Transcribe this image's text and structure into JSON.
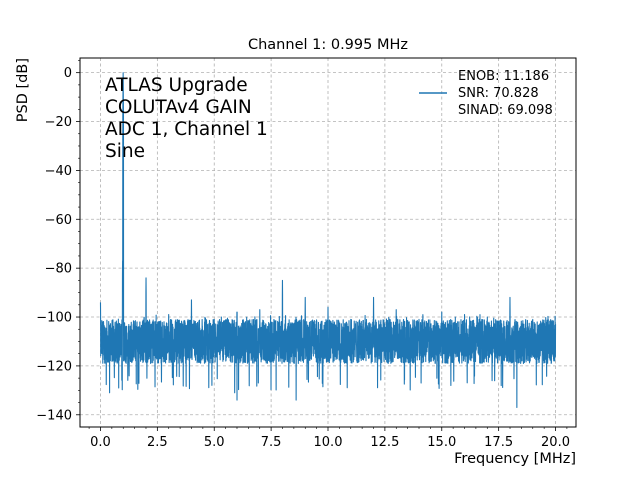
{
  "chart_data": {
    "type": "line",
    "title": "Channel 1: 0.995 MHz",
    "xlabel": "Frequency [MHz]",
    "ylabel": "PSD [dB]",
    "xlim": [
      -0.9,
      20.9
    ],
    "ylim": [
      -145,
      6
    ],
    "x_ticks": [
      0.0,
      2.5,
      5.0,
      7.5,
      10.0,
      12.5,
      15.0,
      17.5,
      20.0
    ],
    "x_tick_labels": [
      "0.0",
      "2.5",
      "5.0",
      "7.5",
      "10.0",
      "12.5",
      "15.0",
      "17.5",
      "20.0"
    ],
    "y_ticks": [
      0,
      -20,
      -40,
      -60,
      -80,
      -100,
      -120,
      -140
    ],
    "y_tick_labels": [
      "0",
      "−20",
      "−40",
      "−60",
      "−80",
      "−100",
      "−120",
      "−140"
    ],
    "grid": true,
    "legend_position": "top-right",
    "legend_entries": [
      "ENOB: 11.186\n SNR: 70.828\n SINAD: 69.098"
    ],
    "annotation": [
      "ATLAS Upgrade",
      "COLUTAv4 GAIN",
      "ADC 1, Channel 1",
      "Sine"
    ],
    "series": [
      {
        "name": "ENOB: 11.186 SNR: 70.828 SINAD: 69.098",
        "color": "#1f77b4",
        "noise_floor": {
          "x_range": [
            0.0,
            20.0
          ],
          "center": -110,
          "min": -124,
          "max": -102
        },
        "peaks": [
          {
            "x": 0.0,
            "y": -94
          },
          {
            "x": 0.995,
            "y": 0
          },
          {
            "x": 0.97,
            "y": -77
          },
          {
            "x": 2.0,
            "y": -84
          },
          {
            "x": 3.0,
            "y": -99
          },
          {
            "x": 4.0,
            "y": -93
          },
          {
            "x": 5.0,
            "y": -101
          },
          {
            "x": 6.0,
            "y": -92
          },
          {
            "x": 7.0,
            "y": -97
          },
          {
            "x": 8.0,
            "y": -85
          },
          {
            "x": 9.0,
            "y": -92
          },
          {
            "x": 10.0,
            "y": -96
          },
          {
            "x": 11.0,
            "y": -101
          },
          {
            "x": 12.0,
            "y": -92
          },
          {
            "x": 13.0,
            "y": -97
          },
          {
            "x": 14.0,
            "y": -101
          },
          {
            "x": 15.0,
            "y": -98
          },
          {
            "x": 16.0,
            "y": -99
          },
          {
            "x": 17.0,
            "y": -100
          },
          {
            "x": 18.0,
            "y": -92
          },
          {
            "x": 19.0,
            "y": -101
          }
        ],
        "dips": [
          {
            "x": 0.4,
            "y": -131
          },
          {
            "x": 5.9,
            "y": -131
          },
          {
            "x": 6.0,
            "y": -134
          },
          {
            "x": 8.6,
            "y": -134
          },
          {
            "x": 18.3,
            "y": -137
          }
        ]
      }
    ]
  }
}
